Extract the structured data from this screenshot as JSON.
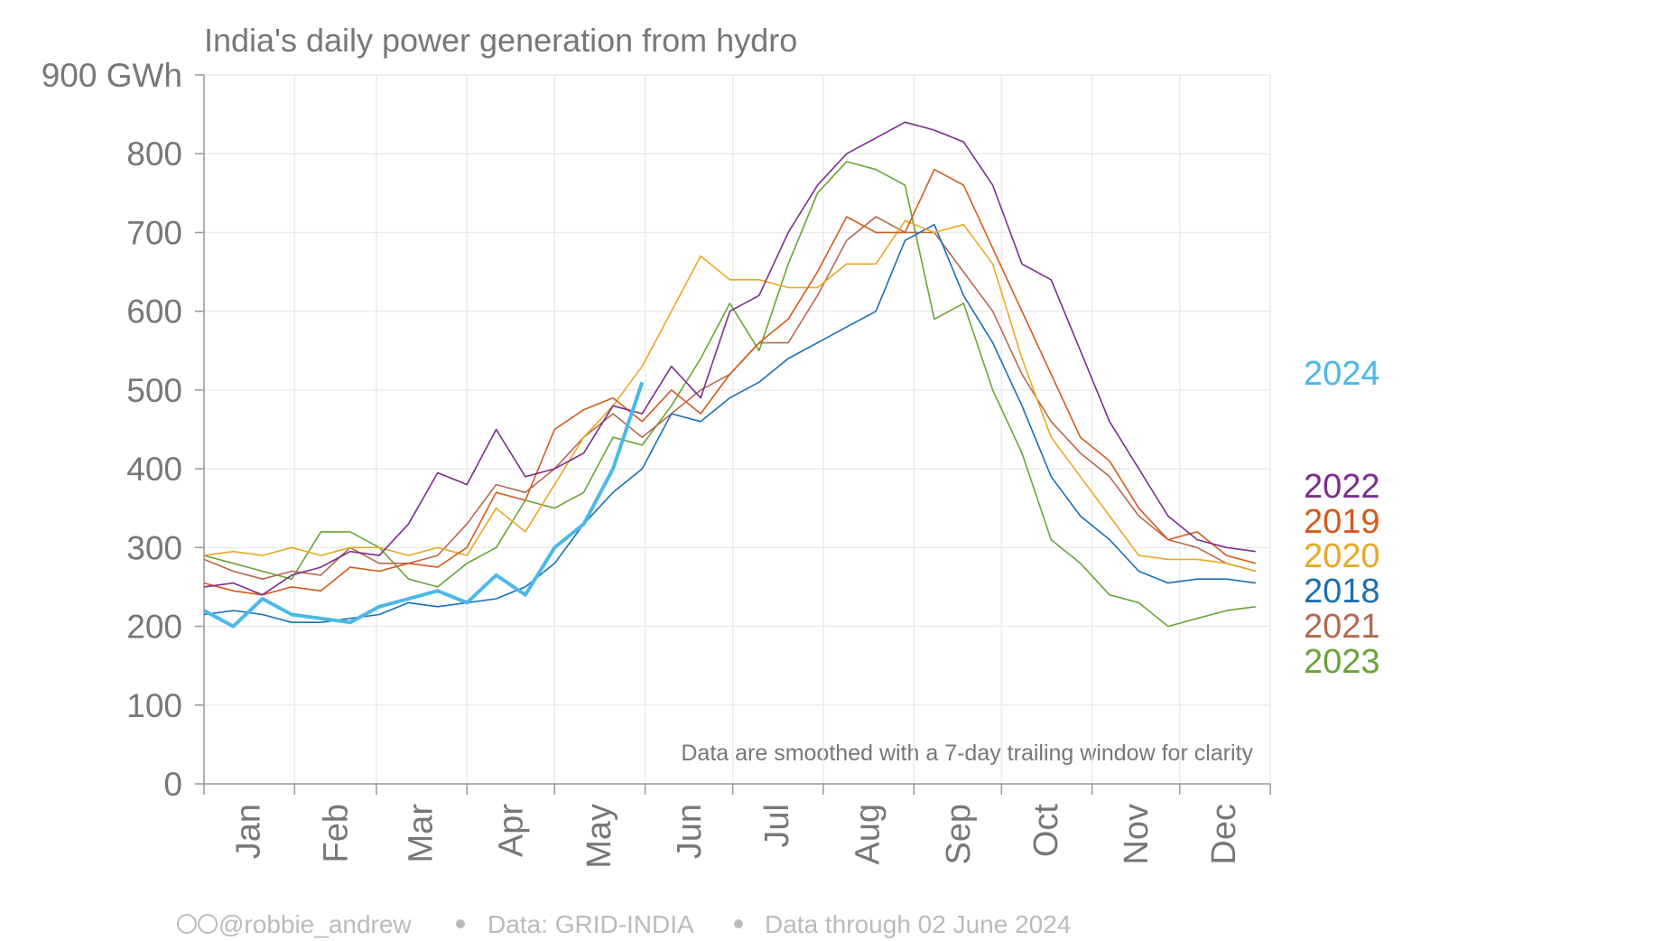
{
  "chart_data": {
    "type": "line",
    "title": "India's daily power generation from hydro",
    "annotation": "Data are smoothed with a 7-day trailing window for clarity",
    "footer": {
      "credit": "@robbie_andrew",
      "source": "Data: GRID-INDIA",
      "through": "Data through 02 June 2024"
    },
    "x": [
      1,
      11,
      21,
      31,
      41,
      51,
      61,
      71,
      81,
      91,
      101,
      111,
      121,
      131,
      141,
      151,
      161,
      171,
      181,
      191,
      201,
      211,
      221,
      231,
      241,
      251,
      261,
      271,
      281,
      291,
      301,
      311,
      321,
      331,
      341,
      351,
      361
    ],
    "xlim": [
      1,
      366
    ],
    "xticks": [
      {
        "value": 16,
        "label": "Jan"
      },
      {
        "value": 46,
        "label": "Feb"
      },
      {
        "value": 75,
        "label": "Mar"
      },
      {
        "value": 106,
        "label": "Apr"
      },
      {
        "value": 136,
        "label": "May"
      },
      {
        "value": 167,
        "label": "Jun"
      },
      {
        "value": 197,
        "label": "Jul"
      },
      {
        "value": 228,
        "label": "Aug"
      },
      {
        "value": 259,
        "label": "Sep"
      },
      {
        "value": 289,
        "label": "Oct"
      },
      {
        "value": 320,
        "label": "Nov"
      },
      {
        "value": 350,
        "label": "Dec"
      }
    ],
    "month_starts": [
      1,
      32,
      60,
      91,
      121,
      152,
      182,
      213,
      244,
      274,
      305,
      335,
      366
    ],
    "ylim": [
      0,
      900
    ],
    "yticks": [
      0,
      100,
      200,
      300,
      400,
      500,
      600,
      700,
      800,
      {
        "value": 900,
        "label": "900 GWh"
      }
    ],
    "grid": true,
    "series": [
      {
        "name": "2024",
        "color": "#4bb8e8",
        "values": [
          220,
          200,
          235,
          215,
          210,
          205,
          225,
          235,
          245,
          230,
          265,
          240,
          300,
          330,
          400,
          510,
          null,
          null,
          null,
          null,
          null,
          null,
          null,
          null,
          null,
          null,
          null,
          null,
          null,
          null,
          null,
          null,
          null,
          null,
          null,
          null,
          null
        ]
      },
      {
        "name": "2022",
        "color": "#7b2d8e",
        "values": [
          250,
          255,
          240,
          265,
          275,
          295,
          290,
          330,
          395,
          380,
          450,
          390,
          400,
          420,
          480,
          470,
          530,
          490,
          600,
          620,
          700,
          760,
          800,
          820,
          840,
          830,
          815,
          760,
          660,
          640,
          550,
          460,
          400,
          340,
          310,
          300,
          295
        ]
      },
      {
        "name": "2019",
        "color": "#d45a1c",
        "values": [
          255,
          245,
          240,
          250,
          245,
          275,
          270,
          280,
          275,
          300,
          370,
          360,
          450,
          475,
          490,
          460,
          500,
          470,
          520,
          560,
          590,
          650,
          720,
          700,
          700,
          780,
          760,
          680,
          600,
          520,
          440,
          410,
          350,
          310,
          320,
          290,
          280
        ]
      },
      {
        "name": "2020",
        "color": "#e8a825",
        "values": [
          290,
          295,
          290,
          300,
          290,
          300,
          300,
          290,
          300,
          290,
          350,
          320,
          380,
          440,
          480,
          530,
          600,
          670,
          640,
          640,
          630,
          630,
          660,
          660,
          715,
          700,
          710,
          660,
          540,
          440,
          390,
          340,
          290,
          285,
          285,
          280,
          270
        ]
      },
      {
        "name": "2018",
        "color": "#1a6fb5",
        "values": [
          215,
          220,
          215,
          205,
          205,
          210,
          215,
          230,
          225,
          230,
          235,
          250,
          280,
          330,
          370,
          400,
          470,
          460,
          490,
          510,
          540,
          560,
          580,
          600,
          690,
          710,
          620,
          560,
          480,
          390,
          340,
          310,
          270,
          255,
          260,
          260,
          255
        ]
      },
      {
        "name": "2021",
        "color": "#b5694e",
        "values": [
          285,
          270,
          260,
          270,
          265,
          300,
          280,
          280,
          290,
          330,
          380,
          370,
          400,
          440,
          470,
          440,
          470,
          500,
          520,
          560,
          560,
          620,
          690,
          720,
          700,
          700,
          650,
          600,
          520,
          460,
          420,
          390,
          340,
          310,
          300,
          280,
          270
        ]
      },
      {
        "name": "2023",
        "color": "#6aa336",
        "values": [
          290,
          280,
          270,
          260,
          320,
          320,
          300,
          260,
          250,
          280,
          300,
          360,
          350,
          370,
          440,
          430,
          480,
          540,
          610,
          550,
          660,
          750,
          790,
          780,
          760,
          590,
          610,
          500,
          420,
          310,
          280,
          240,
          230,
          200,
          210,
          220,
          225
        ]
      }
    ]
  }
}
